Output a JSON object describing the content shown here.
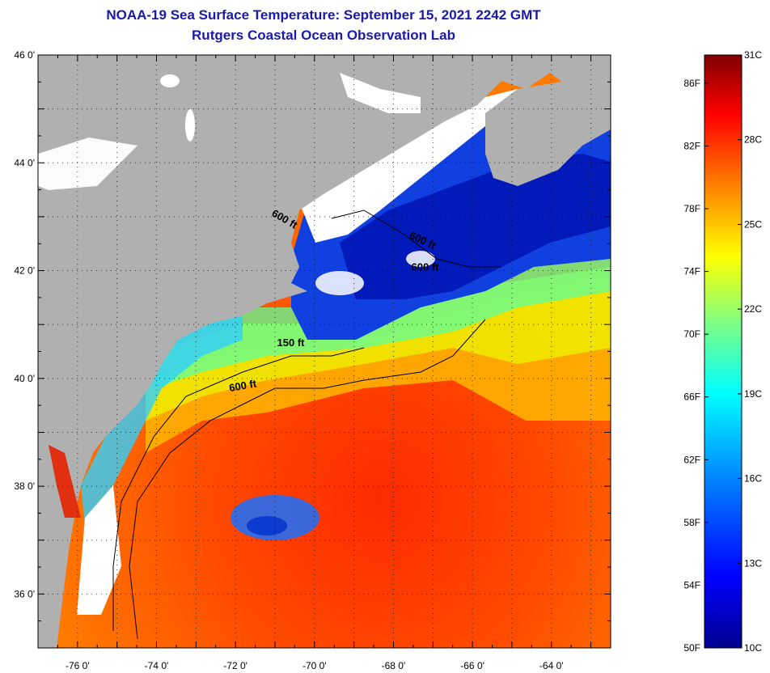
{
  "title": "NOAA-19 Sea Surface Temperature:  September 15, 2021 2242 GMT",
  "subtitle": "Rutgers Coastal Ocean Observation Lab",
  "lat_labels": [
    {
      "lat": 46,
      "text": "46 0'"
    },
    {
      "lat": 44,
      "text": "44 0'"
    },
    {
      "lat": 42,
      "text": "42 0'"
    },
    {
      "lat": 40,
      "text": "40 0'"
    },
    {
      "lat": 38,
      "text": "38 0'"
    },
    {
      "lat": 36,
      "text": "36 0'"
    }
  ],
  "lon_labels": [
    {
      "lon": -76,
      "text": "-76 0'"
    },
    {
      "lon": -74,
      "text": "-74 0'"
    },
    {
      "lon": -72,
      "text": "-72 0'"
    },
    {
      "lon": -70,
      "text": "-70 0'"
    },
    {
      "lon": -68,
      "text": "-68 0'"
    },
    {
      "lon": -66,
      "text": "-66 0'"
    },
    {
      "lon": -64,
      "text": "-64 0'"
    }
  ],
  "extent": {
    "lon_min": -77,
    "lon_max": -62.5,
    "lat_min": 35,
    "lat_max": 46
  },
  "contour_labels": [
    {
      "text": "600 ft",
      "lon": -70.8,
      "lat": 42.9,
      "rotate": 30
    },
    {
      "text": "600 ft",
      "lon": -67.3,
      "lat": 42.5,
      "rotate": 25
    },
    {
      "text": "600 ft",
      "lon": -67.2,
      "lat": 42.0,
      "rotate": 0
    },
    {
      "text": "150 ft",
      "lon": -70.6,
      "lat": 40.6,
      "rotate": 0
    },
    {
      "text": "600 ft",
      "lon": -71.8,
      "lat": 39.8,
      "rotate": -10
    }
  ],
  "colorbar": {
    "f_labels": [
      "86F",
      "82F",
      "78F",
      "74F",
      "70F",
      "66F",
      "62F",
      "58F",
      "54F",
      "50F"
    ],
    "f_values": [
      86,
      82,
      78,
      74,
      70,
      66,
      62,
      58,
      54,
      50
    ],
    "c_labels": [
      "31C",
      "28C",
      "25C",
      "22C",
      "19C",
      "16C",
      "13C",
      "10C"
    ],
    "c_values": [
      31,
      28,
      25,
      22,
      19,
      16,
      13,
      10
    ],
    "min_c": 10,
    "max_c": 31,
    "colors": [
      "#00008f",
      "#0000ff",
      "#0080ff",
      "#00ffff",
      "#80ff80",
      "#ffff00",
      "#ff8000",
      "#ff0000",
      "#800000"
    ]
  },
  "colors": {
    "land": "#b0b0b0",
    "cloud": "#ffffff",
    "title": "#1a1aa8"
  }
}
